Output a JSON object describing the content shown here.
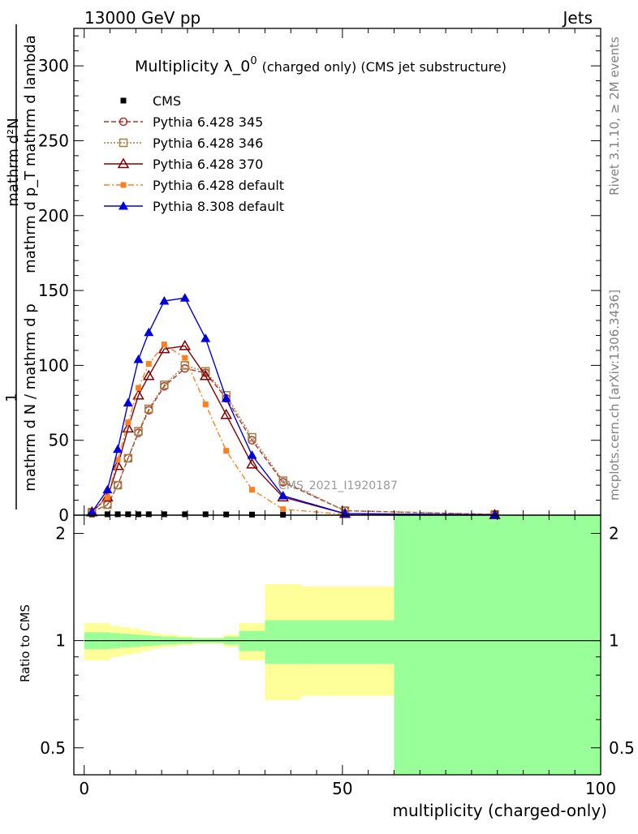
{
  "header": {
    "left": "13000 GeV pp",
    "right": "Jets"
  },
  "side_labels": {
    "rivet": "Rivet 3.1.10, ≥ 2M events",
    "mcplots": "mcplots.cern.ch [arXiv:1306.3436]"
  },
  "watermark": "CMS_2021_I1920187",
  "title": {
    "main": "Multiplicity λ_0",
    "sup": "0",
    "paren": "(charged only) (CMS jet substructure)"
  },
  "ylabel_main": {
    "numerator": "mathrm d²N",
    "numerator_left": "1",
    "denominator": "mathrm d N / mathrm d p",
    "denominator_right": "mathrm d p_T mathrm d lambda"
  },
  "ylabel_ratio": "Ratio to CMS",
  "xlabel": "multiplicity (charged-only)",
  "colors": {
    "cms": "#000000",
    "p345": "#b03030",
    "p346": "#a08040",
    "p370": "#800000",
    "pdef": "#ff7f20",
    "p8": "#0000dd",
    "band_inner": "#99ff99",
    "band_outer": "#ffff99"
  },
  "chart_data": [
    {
      "type": "line",
      "xlim": [
        -2,
        100
      ],
      "ylim": [
        0,
        325
      ],
      "yticks": [
        0,
        50,
        100,
        150,
        200,
        250,
        300
      ],
      "series": [
        {
          "name": "CMS",
          "marker": "square-filled",
          "x": [
            1.5,
            4.5,
            6.5,
            8.5,
            10.5,
            12.5,
            15.5,
            19.5,
            23.5,
            27.5,
            32.5,
            38.5,
            50.5,
            79.5
          ],
          "y": [
            0.5,
            0.6,
            0.6,
            0.6,
            0.6,
            0.6,
            0.6,
            0.6,
            0.6,
            0.5,
            0.4,
            0.3,
            0.1,
            0.02
          ]
        },
        {
          "name": "Pythia 6.428 345",
          "marker": "circle-open",
          "dash": "6,3",
          "x": [
            1.5,
            4.5,
            6.5,
            8.5,
            10.5,
            12.5,
            15.5,
            19.5,
            23.5,
            27.5,
            32.5,
            38.5,
            50.5,
            79.5
          ],
          "y": [
            2,
            7,
            20,
            38,
            55,
            70,
            86,
            98,
            95,
            78,
            50,
            22,
            3,
            0.5
          ]
        },
        {
          "name": "Pythia 6.428 346",
          "marker": "square-open",
          "dash": "2,2",
          "x": [
            1.5,
            4.5,
            6.5,
            8.5,
            10.5,
            12.5,
            15.5,
            19.5,
            23.5,
            27.5,
            32.5,
            38.5,
            50.5,
            79.5
          ],
          "y": [
            2,
            7,
            20,
            38,
            56,
            71,
            87,
            100,
            96,
            80,
            52,
            23,
            3,
            0.5
          ]
        },
        {
          "name": "Pythia 6.428 370",
          "marker": "triangle-open",
          "dash": "",
          "x": [
            1.5,
            4.5,
            6.5,
            8.5,
            10.5,
            12.5,
            15.5,
            19.5,
            23.5,
            27.5,
            32.5,
            38.5,
            50.5,
            79.5
          ],
          "y": [
            2,
            12,
            33,
            58,
            80,
            93,
            111,
            113,
            93,
            67,
            34,
            12,
            1,
            0.2
          ]
        },
        {
          "name": "Pythia 6.428 default",
          "marker": "square-filled",
          "dash": "7,3,2,3",
          "x": [
            1.5,
            4.5,
            6.5,
            8.5,
            10.5,
            12.5,
            15.5,
            19.5,
            23.5,
            27.5,
            32.5,
            38.5,
            50.5,
            79.5
          ],
          "y": [
            2,
            12,
            37,
            62,
            85,
            101,
            114,
            105,
            74,
            43,
            17,
            4,
            0.5,
            0.1
          ]
        },
        {
          "name": "Pythia 8.308 default",
          "marker": "triangle-filled",
          "dash": "",
          "x": [
            1.5,
            4.5,
            6.5,
            8.5,
            10.5,
            12.5,
            15.5,
            19.5,
            23.5,
            27.5,
            32.5,
            38.5,
            50.5,
            79.5
          ],
          "y": [
            2,
            17,
            44,
            75,
            104,
            122,
            143,
            145,
            118,
            78,
            40,
            13,
            1,
            0.2
          ]
        }
      ]
    },
    {
      "type": "area",
      "xlim": [
        -2,
        100
      ],
      "ylim": [
        0.42,
        2.25
      ],
      "yticks": [
        0.5,
        1,
        2
      ],
      "reference": 1,
      "bins": [
        [
          0,
          3
        ],
        [
          3,
          5
        ],
        [
          5,
          7
        ],
        [
          7,
          9
        ],
        [
          9,
          11
        ],
        [
          11,
          13
        ],
        [
          13,
          15
        ],
        [
          15,
          18
        ],
        [
          18,
          21
        ],
        [
          21,
          24
        ],
        [
          24,
          27
        ],
        [
          27,
          30
        ],
        [
          30,
          35
        ],
        [
          35,
          42
        ],
        [
          42,
          60
        ],
        [
          60,
          100
        ]
      ],
      "inner_band_lo": [
        0.945,
        0.945,
        0.95,
        0.955,
        0.96,
        0.965,
        0.97,
        0.975,
        0.98,
        0.985,
        0.985,
        0.975,
        0.935,
        0.86,
        0.86,
        0.38
      ],
      "inner_band_hi": [
        1.055,
        1.055,
        1.05,
        1.045,
        1.04,
        1.035,
        1.03,
        1.025,
        1.02,
        1.015,
        1.015,
        1.025,
        1.065,
        1.14,
        1.14,
        2.3
      ],
      "outer_band_lo": [
        0.88,
        0.88,
        0.9,
        0.91,
        0.92,
        0.935,
        0.95,
        0.96,
        0.97,
        0.98,
        0.98,
        0.96,
        0.88,
        0.68,
        0.7,
        0.38
      ],
      "outer_band_hi": [
        1.12,
        1.12,
        1.1,
        1.09,
        1.08,
        1.065,
        1.05,
        1.04,
        1.03,
        1.02,
        1.02,
        1.04,
        1.12,
        1.44,
        1.42,
        2.3
      ]
    }
  ],
  "xticks": [
    0,
    50,
    100
  ]
}
